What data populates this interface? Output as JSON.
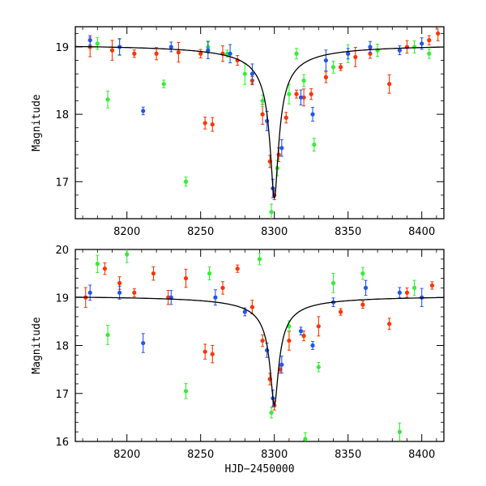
{
  "chart_data": [
    {
      "type": "scatter",
      "title": "",
      "xlabel": "",
      "ylabel": "Magnitude",
      "xlim": [
        8165,
        8415
      ],
      "ylim": [
        19.3,
        16.45
      ],
      "y_inverted": true,
      "x_ticks": [
        8200,
        8250,
        8300,
        8350,
        8400
      ],
      "y_ticks": [
        17,
        18,
        19
      ],
      "x_tick_labels": [
        "8200",
        "8250",
        "8300",
        "8350",
        "8400"
      ],
      "y_tick_labels": [
        "17",
        "18",
        "19"
      ],
      "model_curve": {
        "peak_t": 8300,
        "peak_mag": 16.75,
        "baseline_mag": 19.05,
        "tE": 14
      },
      "series": [
        {
          "color": "#ff3300",
          "points": [
            [
              8175,
              19.0
            ],
            [
              8190,
              18.95
            ],
            [
              8205,
              18.9
            ],
            [
              8220,
              18.9
            ],
            [
              8235,
              18.92
            ],
            [
              8250,
              18.9
            ],
            [
              8253,
              17.87
            ],
            [
              8258,
              17.85
            ],
            [
              8265,
              18.9
            ],
            [
              8275,
              18.8
            ],
            [
              8285,
              18.5
            ],
            [
              8292,
              18.0
            ],
            [
              8297,
              17.3
            ],
            [
              8300,
              16.8
            ],
            [
              8303,
              17.4
            ],
            [
              8308,
              17.95
            ],
            [
              8315,
              18.3
            ],
            [
              8320,
              18.25
            ],
            [
              8325,
              18.3
            ],
            [
              8335,
              18.55
            ],
            [
              8345,
              18.7
            ],
            [
              8355,
              18.85
            ],
            [
              8365,
              18.9
            ],
            [
              8378,
              18.45
            ],
            [
              8390,
              19.0
            ],
            [
              8405,
              19.1
            ],
            [
              8411,
              19.2
            ]
          ]
        },
        {
          "color": "#33ee33",
          "points": [
            [
              8180,
              19.05
            ],
            [
              8187,
              18.22
            ],
            [
              8195,
              19.0
            ],
            [
              8225,
              18.45
            ],
            [
              8240,
              17.0
            ],
            [
              8255,
              19.0
            ],
            [
              8268,
              18.9
            ],
            [
              8280,
              18.6
            ],
            [
              8292,
              18.2
            ],
            [
              8298,
              16.55
            ],
            [
              8302,
              17.2
            ],
            [
              8310,
              18.3
            ],
            [
              8315,
              18.9
            ],
            [
              8320,
              18.5
            ],
            [
              8327,
              17.55
            ],
            [
              8340,
              18.7
            ],
            [
              8350,
              18.9
            ],
            [
              8370,
              18.95
            ],
            [
              8395,
              19.0
            ],
            [
              8405,
              18.9
            ]
          ]
        },
        {
          "color": "#2255ee",
          "points": [
            [
              8175,
              19.1
            ],
            [
              8195,
              19.0
            ],
            [
              8211,
              18.05
            ],
            [
              8230,
              19.0
            ],
            [
              8255,
              18.95
            ],
            [
              8270,
              18.9
            ],
            [
              8285,
              18.6
            ],
            [
              8295,
              17.9
            ],
            [
              8299,
              16.9
            ],
            [
              8305,
              17.5
            ],
            [
              8318,
              18.25
            ],
            [
              8326,
              18.0
            ],
            [
              8335,
              18.8
            ],
            [
              8350,
              18.9
            ],
            [
              8365,
              19.0
            ],
            [
              8385,
              18.95
            ],
            [
              8400,
              19.05
            ]
          ]
        }
      ]
    },
    {
      "type": "scatter",
      "title": "",
      "xlabel": "HJD−2450000",
      "ylabel": "Magnitude",
      "xlim": [
        8165,
        8415
      ],
      "ylim": [
        20,
        16
      ],
      "y_inverted": true,
      "x_ticks": [
        8200,
        8250,
        8300,
        8350,
        8400
      ],
      "y_ticks": [
        16,
        17,
        18,
        19,
        20
      ],
      "x_tick_labels": [
        "8200",
        "8250",
        "8300",
        "8350",
        "8400"
      ],
      "y_tick_labels": [
        "16",
        "17",
        "18",
        "19",
        "20"
      ],
      "model_curve": {
        "peak_t": 8300,
        "peak_mag": 16.75,
        "baseline_mag": 19.05,
        "tE": 14
      },
      "series": [
        {
          "color": "#ff3300",
          "points": [
            [
              8172,
              19.0
            ],
            [
              8185,
              19.6
            ],
            [
              8195,
              19.3
            ],
            [
              8205,
              19.1
            ],
            [
              8218,
              19.5
            ],
            [
              8228,
              19.0
            ],
            [
              8240,
              19.4
            ],
            [
              8253,
              17.87
            ],
            [
              8258,
              17.82
            ],
            [
              8265,
              19.2
            ],
            [
              8275,
              19.6
            ],
            [
              8285,
              18.8
            ],
            [
              8292,
              18.1
            ],
            [
              8297,
              17.3
            ],
            [
              8300,
              16.75
            ],
            [
              8304,
              17.5
            ],
            [
              8310,
              18.1
            ],
            [
              8320,
              18.2
            ],
            [
              8330,
              18.4
            ],
            [
              8345,
              18.7
            ],
            [
              8360,
              18.85
            ],
            [
              8378,
              18.45
            ],
            [
              8390,
              19.1
            ],
            [
              8407,
              19.25
            ]
          ]
        },
        {
          "color": "#33ee33",
          "points": [
            [
              8180,
              19.7
            ],
            [
              8187,
              18.22
            ],
            [
              8200,
              19.9
            ],
            [
              8240,
              17.05
            ],
            [
              8256,
              19.5
            ],
            [
              8290,
              19.8
            ],
            [
              8298,
              16.6
            ],
            [
              8310,
              18.4
            ],
            [
              8321,
              16.05
            ],
            [
              8330,
              17.55
            ],
            [
              8340,
              19.3
            ],
            [
              8360,
              19.5
            ],
            [
              8385,
              16.2
            ],
            [
              8395,
              19.2
            ]
          ]
        },
        {
          "color": "#2255ee",
          "points": [
            [
              8175,
              19.1
            ],
            [
              8195,
              19.1
            ],
            [
              8211,
              18.05
            ],
            [
              8230,
              19.0
            ],
            [
              8260,
              19.0
            ],
            [
              8280,
              18.7
            ],
            [
              8295,
              17.9
            ],
            [
              8299,
              16.9
            ],
            [
              8305,
              17.6
            ],
            [
              8318,
              18.3
            ],
            [
              8326,
              18.0
            ],
            [
              8340,
              18.9
            ],
            [
              8362,
              19.2
            ],
            [
              8385,
              19.1
            ],
            [
              8400,
              19.0
            ]
          ]
        }
      ]
    }
  ]
}
